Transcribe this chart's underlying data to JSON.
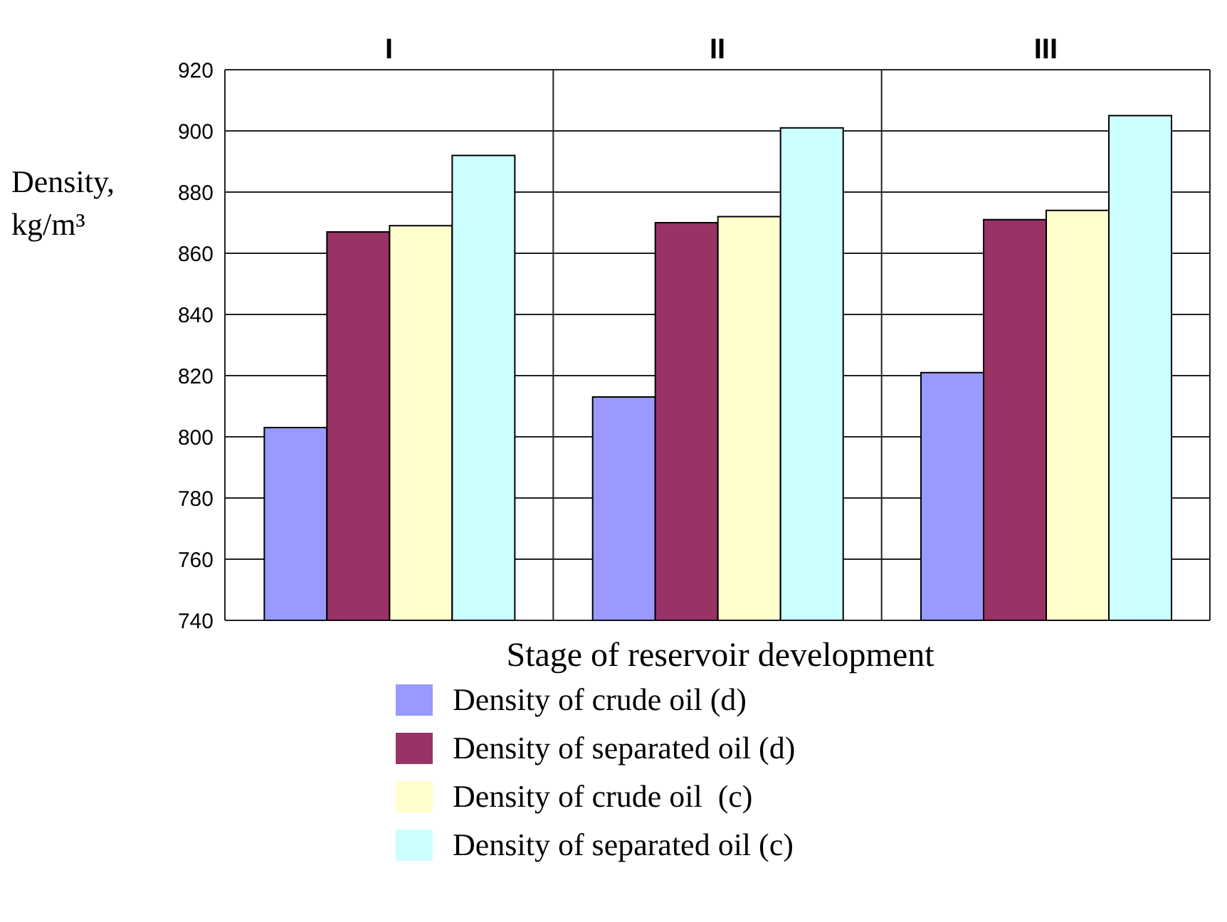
{
  "chart_data": {
    "type": "bar",
    "xlabel": "Stage of reservoir development",
    "ylabel": "Density, kg/m³",
    "categories": [
      "I",
      "II",
      "III"
    ],
    "series": [
      {
        "name": "Density of crude oil (d)",
        "color": "#9999ff",
        "values": [
          803,
          813,
          821
        ]
      },
      {
        "name": "Density of separated oil (d)",
        "color": "#993366",
        "values": [
          867,
          870,
          871
        ]
      },
      {
        "name": "Density of crude oil  (c)",
        "color": "#ffffcc",
        "values": [
          869,
          872,
          874
        ]
      },
      {
        "name": "Density of separated oil (c)",
        "color": "#ccffff",
        "values": [
          892,
          901,
          905
        ]
      }
    ],
    "ylim": [
      740,
      920
    ],
    "yticks": [
      740,
      760,
      780,
      800,
      820,
      840,
      860,
      880,
      900,
      920
    ],
    "grid": true,
    "legend": "bottom"
  }
}
